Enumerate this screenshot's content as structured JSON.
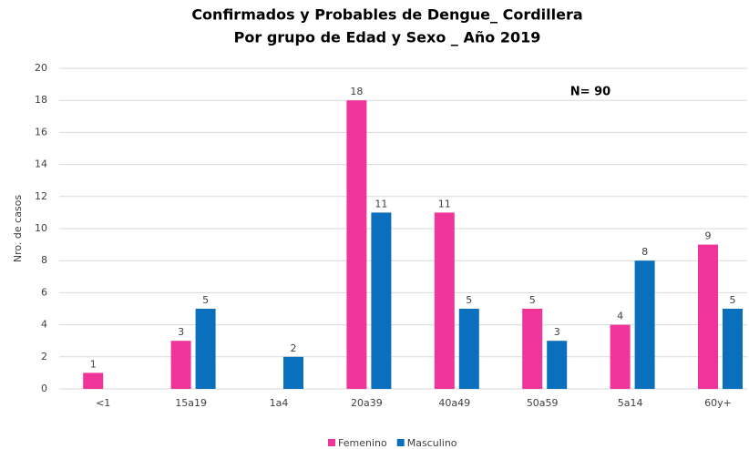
{
  "chart_data": {
    "type": "bar",
    "title": "Confirmados y Probables de Dengue_ Cordillera",
    "subtitle": "Por grupo de Edad y Sexo _ Año 2019",
    "y_label": "Nro. de casos",
    "annotation": "N= 90",
    "categories": [
      "<1",
      "15a19",
      "1a4",
      "20a39",
      "40a49",
      "50a59",
      "5a14",
      "60y+"
    ],
    "series": [
      {
        "name": "Femenino",
        "color": "#f0359a",
        "values": [
          1,
          3,
          null,
          18,
          11,
          5,
          4,
          9
        ]
      },
      {
        "name": "Masculino",
        "color": "#0a6fbd",
        "values": [
          null,
          5,
          2,
          11,
          5,
          3,
          8,
          5
        ]
      }
    ],
    "ylim": [
      0,
      20
    ],
    "yticks": [
      0,
      2,
      4,
      6,
      8,
      10,
      12,
      14,
      16,
      18,
      20
    ],
    "grid": true,
    "legend": "bottom"
  }
}
